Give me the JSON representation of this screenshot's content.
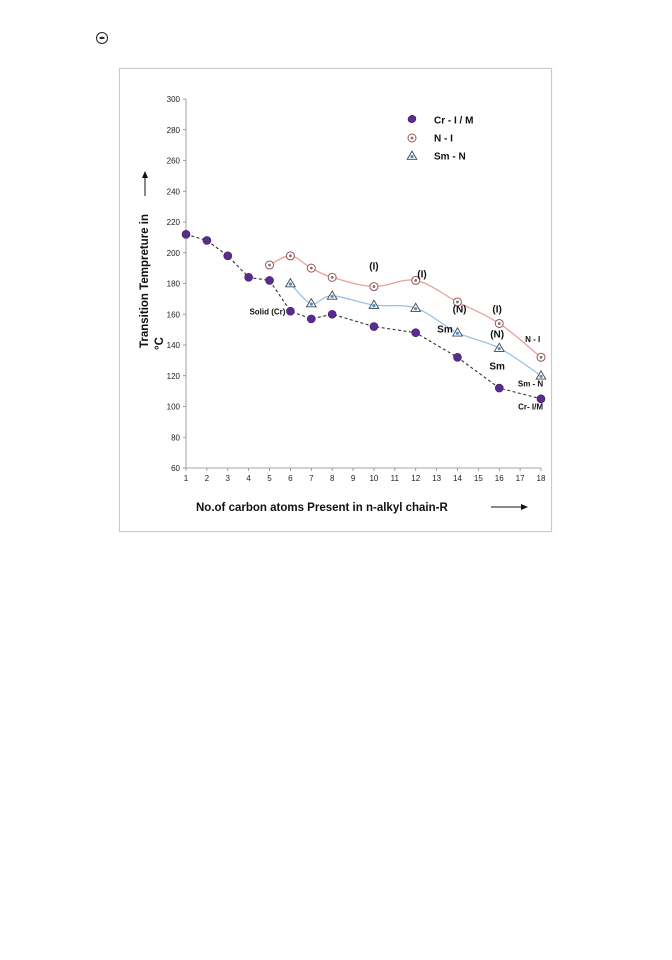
{
  "page": {
    "header_icon": "circle-mark-icon"
  },
  "chart_data": {
    "type": "line",
    "title": "",
    "xlabel": "No.of carbon atoms Present in n-alkyl chain-R",
    "ylabel": "Transition Tempreture in",
    "ylabel_unit": "°C",
    "xlim": [
      1,
      18
    ],
    "ylim": [
      60,
      300
    ],
    "x_ticks": [
      1,
      2,
      3,
      4,
      5,
      6,
      7,
      8,
      9,
      10,
      11,
      12,
      13,
      14,
      15,
      16,
      17,
      18
    ],
    "y_ticks": [
      60,
      80,
      100,
      120,
      140,
      160,
      180,
      200,
      220,
      240,
      260,
      280,
      300
    ],
    "grid": false,
    "legend_position": "top-right",
    "series": [
      {
        "name": "Cr - I / M",
        "marker": "filled-circle",
        "color": "#5b2c8f",
        "line_color": "#333333",
        "line_style": "dashed",
        "x": [
          1,
          2,
          3,
          4,
          5,
          6,
          7,
          8,
          10,
          12,
          14,
          16,
          18
        ],
        "y": [
          212,
          208,
          198,
          184,
          182,
          162,
          157,
          160,
          152,
          148,
          132,
          112,
          105
        ]
      },
      {
        "name": "N - I",
        "marker": "open-circle-dot",
        "color": "#c0504d",
        "line_color": "#e8a0a0",
        "line_style": "solid",
        "x": [
          5,
          6,
          7,
          8,
          10,
          12,
          14,
          16,
          18
        ],
        "y": [
          192,
          198,
          190,
          184,
          178,
          182,
          168,
          154,
          132
        ]
      },
      {
        "name": "Sm - N",
        "marker": "open-triangle-dot",
        "color": "#4a90c8",
        "line_color": "#9cc3e6",
        "line_style": "solid",
        "x": [
          6,
          7,
          8,
          10,
          12,
          14,
          16,
          18
        ],
        "y": [
          180,
          167,
          172,
          166,
          164,
          148,
          138,
          120
        ]
      }
    ],
    "annotations": [
      {
        "text": "Solid (Cr)",
        "x": 4.9,
        "y": 160,
        "size": "small"
      },
      {
        "text": "(I)",
        "x": 10.0,
        "y": 189,
        "size": "large"
      },
      {
        "text": "(I)",
        "x": 12.3,
        "y": 184,
        "size": "large"
      },
      {
        "text": "(N)",
        "x": 14.1,
        "y": 161,
        "size": "large"
      },
      {
        "text": "Sm",
        "x": 13.4,
        "y": 148,
        "size": "large"
      },
      {
        "text": "(I)",
        "x": 15.9,
        "y": 161,
        "size": "large"
      },
      {
        "text": "(N)",
        "x": 15.9,
        "y": 145,
        "size": "large"
      },
      {
        "text": "Sm",
        "x": 15.9,
        "y": 124,
        "size": "large"
      },
      {
        "text": "N - I",
        "x": 17.6,
        "y": 142,
        "size": "small"
      },
      {
        "text": "Sm - N",
        "x": 17.5,
        "y": 113,
        "size": "small"
      },
      {
        "text": "Cr- I/M",
        "x": 17.5,
        "y": 98,
        "size": "small"
      }
    ]
  }
}
